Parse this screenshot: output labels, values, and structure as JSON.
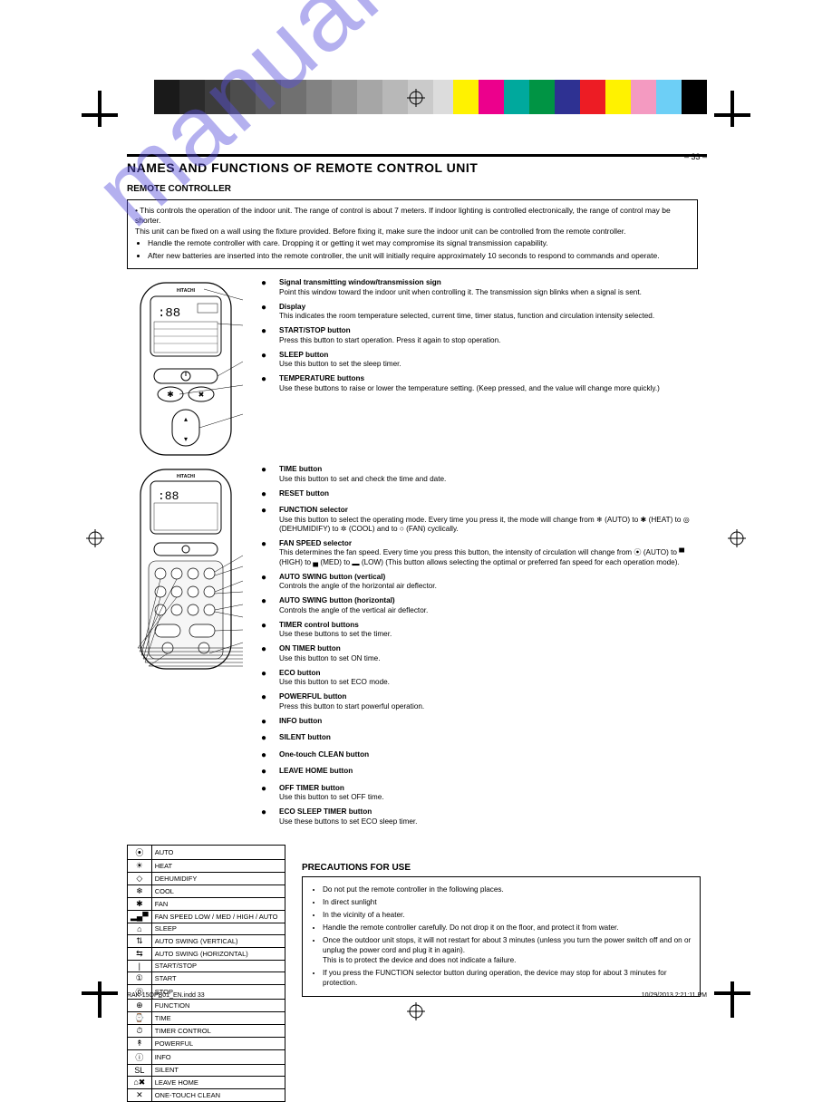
{
  "watermark_text": "manualshive.com",
  "colorbar_left": [
    "#1a1a1a",
    "#2b2b2b",
    "#3c3c3c",
    "#4d4d4d",
    "#5e5e5e",
    "#707070",
    "#828282",
    "#949494",
    "#a6a6a6",
    "#b8b8b8",
    "#cacaca",
    "#dcdcdc",
    "#ffffff"
  ],
  "colorbar_right": [
    "#fff200",
    "#ec008c",
    "#00a99d",
    "#009444",
    "#2e3192",
    "#ed1c24",
    "#fff200",
    "#f49ac1",
    "#6dcff6",
    "#000000"
  ],
  "page_number": "– 33 –",
  "heading": "NAMES AND FUNCTIONS OF REMOTE CONTROL UNIT",
  "subhead1": "REMOTE CONTROLLER",
  "warn_lead": "• This controls the operation of the indoor unit. The range of control is about 7 meters. If indoor lighting is controlled electronically, the range of control may be shorter.\nThis unit can be fixed on a wall using the fixture provided. Before fixing it, make sure the indoor unit can be controlled from the remote controller.",
  "warn_bullets": [
    "Handle the remote controller with care. Dropping it or getting it wet may compromise its signal transmission capability.",
    "After new batteries are inserted into the remote controller, the unit will initially require approximately 10 seconds to respond to commands and operate."
  ],
  "section_a": {
    "items": [
      {
        "glyph": "●",
        "title": "Signal transmitting window/transmission sign",
        "desc": "Point this window toward the indoor unit when controlling it. The transmission sign blinks when a signal is sent."
      },
      {
        "glyph": "●",
        "title": "Display",
        "desc": "This indicates the room temperature selected, current time, timer status, function and circulation intensity selected."
      },
      {
        "glyph": "●",
        "title": "START/STOP button",
        "desc": "Press this button to start operation. Press it again to stop operation."
      },
      {
        "glyph": "●",
        "title": "SLEEP button",
        "desc": "Use this button to set the sleep timer."
      },
      {
        "glyph": "●",
        "title": "TEMPERATURE buttons",
        "desc": "Use these buttons to raise or lower the temperature setting. (Keep pressed, and the value will change more quickly.)"
      },
      {
        "glyph": "●",
        "title": "TIME button",
        "desc": "Use this button to set and check the time and date."
      },
      {
        "glyph": "●",
        "title": "RESET button",
        "desc": ""
      },
      {
        "glyph": "●",
        "title": "FUNCTION selector",
        "desc": "Use this button to select the operating mode. Every time you press it, the mode will change from ❄ (AUTO) to ✱ (HEAT) to ◎ (DEHUMIDIFY) to ✲ (COOL) and to ○ (FAN) cyclically."
      },
      {
        "glyph": "●",
        "title": "FAN SPEED selector",
        "desc": "This determines the fan speed. Every time you press this button, the intensity of circulation will change from ⦿ (AUTO) to ▀ (HIGH) to ▄ (MED) to ▂ (LOW) (This button allows selecting the optimal or preferred fan speed for each operation mode)."
      },
      {
        "glyph": "●",
        "title": "AUTO SWING button (vertical)",
        "desc": "Controls the angle of the horizontal air deflector."
      },
      {
        "glyph": "●",
        "title": "AUTO SWING button (horizontal)",
        "desc": "Controls the angle of the vertical air deflector."
      },
      {
        "glyph": "●",
        "title": "TIMER control buttons",
        "desc": "Use these buttons to set the timer."
      },
      {
        "glyph": "●",
        "title": "ON TIMER button",
        "desc": "Use this button to set ON time."
      },
      {
        "glyph": "●",
        "title": "ECO button",
        "desc": "Use this button to set ECO mode."
      },
      {
        "glyph": "●",
        "title": "POWERFUL button",
        "desc": "Press this button to start powerful operation."
      },
      {
        "glyph": "●",
        "title": "INFO button",
        "desc": ""
      },
      {
        "glyph": "●",
        "title": "SILENT button",
        "desc": ""
      },
      {
        "glyph": "●",
        "title": "One-touch CLEAN button",
        "desc": ""
      },
      {
        "glyph": "●",
        "title": "LEAVE HOME button",
        "desc": ""
      },
      {
        "glyph": "●",
        "title": "OFF TIMER button",
        "desc": "Use this button to set OFF time."
      },
      {
        "glyph": "●",
        "title": "ECO SLEEP TIMER button",
        "desc": "Use these buttons to set ECO sleep timer."
      }
    ]
  },
  "legend": [
    {
      "ic": "⦿",
      "txt": "AUTO"
    },
    {
      "ic": "☀",
      "txt": "HEAT"
    },
    {
      "ic": "◇",
      "txt": "DEHUMIDIFY"
    },
    {
      "ic": "❄",
      "txt": "COOL"
    },
    {
      "ic": "✱",
      "txt": "FAN"
    },
    {
      "ic": "▂▄▀",
      "txt": "FAN SPEED LOW / MED / HIGH / AUTO"
    },
    {
      "ic": "⌂",
      "txt": "SLEEP"
    },
    {
      "ic": "⇅",
      "txt": "AUTO SWING (VERTICAL)"
    },
    {
      "ic": "⇆",
      "txt": "AUTO SWING (HORIZONTAL)"
    },
    {
      "ic": "|",
      "txt": "START/STOP"
    },
    {
      "ic": "①",
      "txt": "START"
    },
    {
      "ic": "⓪",
      "txt": "STOP"
    },
    {
      "ic": "⊕",
      "txt": "FUNCTION"
    },
    {
      "ic": "⌚",
      "txt": "TIME"
    },
    {
      "ic": "⏱",
      "txt": "TIMER CONTROL"
    },
    {
      "ic": "↟",
      "txt": "POWERFUL"
    },
    {
      "ic": "ⓘ",
      "txt": "INFO"
    },
    {
      "ic": "SL",
      "txt": "SILENT"
    },
    {
      "ic": "⌂✖",
      "txt": "LEAVE HOME"
    },
    {
      "ic": "✕",
      "txt": "ONE-TOUCH CLEAN"
    }
  ],
  "notes_title": "Precautions for Use",
  "notes": [
    "Do not put the remote controller in the following places.",
    "In direct sunlight",
    "In the vicinity of a heater.",
    "Handle the remote controller carefully. Do not drop it on the floor, and protect it from water.",
    "Once the outdoor unit stops, it will not restart for about 3 minutes (unless you turn the power switch off and on or unplug the power cord and plug it in again).\nThis is to protect the device and does not indicate a failure.",
    "If you press the FUNCTION selector button during operation, the device may stop for about 3 minutes for protection."
  ],
  "bottom_left": "RAK-15QPB̲01_EN.indd   33",
  "bottom_right": "10/29/2013   2:21:11 PM"
}
